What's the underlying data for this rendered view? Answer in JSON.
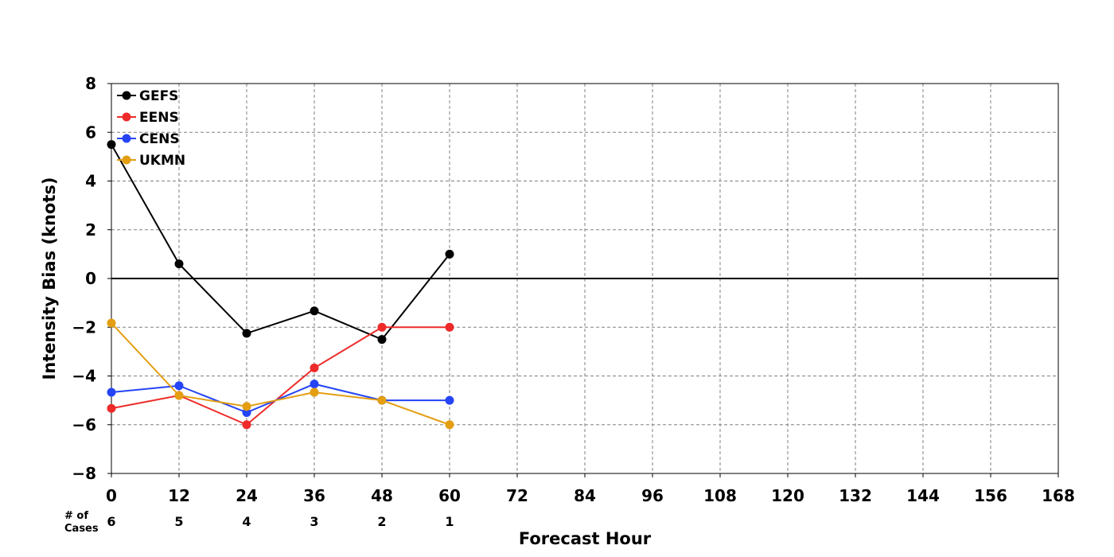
{
  "chart_data": {
    "type": "line",
    "xlabel": "Forecast Hour",
    "ylabel": "Intensity Bias (knots)",
    "xlim": [
      0,
      168
    ],
    "ylim": [
      -8,
      8
    ],
    "xticks": [
      0,
      12,
      24,
      36,
      48,
      60,
      72,
      84,
      96,
      108,
      120,
      132,
      144,
      156,
      168
    ],
    "yticks": [
      8,
      6,
      4,
      2,
      0,
      -2,
      -4,
      -6,
      -8
    ],
    "grid": true,
    "legend_position": "top-left",
    "x": [
      0,
      12,
      24,
      36,
      48,
      60
    ],
    "series": [
      {
        "name": "GEFS",
        "color": "#000000",
        "values": [
          5.5,
          0.6,
          -2.25,
          -1.33,
          -2.5,
          1.0
        ]
      },
      {
        "name": "EENS",
        "color": "#ee2a2a",
        "values": [
          -5.33,
          -4.8,
          -6.0,
          -3.67,
          -2.0,
          -2.0
        ]
      },
      {
        "name": "CENS",
        "color": "#2444f5",
        "values": [
          -4.67,
          -4.4,
          -5.5,
          -4.33,
          -5.0,
          -5.0
        ]
      },
      {
        "name": "UKMN",
        "color": "#e39e12",
        "values": [
          -1.83,
          -4.8,
          -5.25,
          -4.67,
          -5.0,
          -6.0
        ]
      }
    ],
    "cases": {
      "label_line1": "# of",
      "label_line2": "Cases",
      "hours": [
        0,
        12,
        24,
        36,
        48,
        60
      ],
      "counts": [
        "6",
        "5",
        "4",
        "3",
        "2",
        "1"
      ]
    }
  }
}
